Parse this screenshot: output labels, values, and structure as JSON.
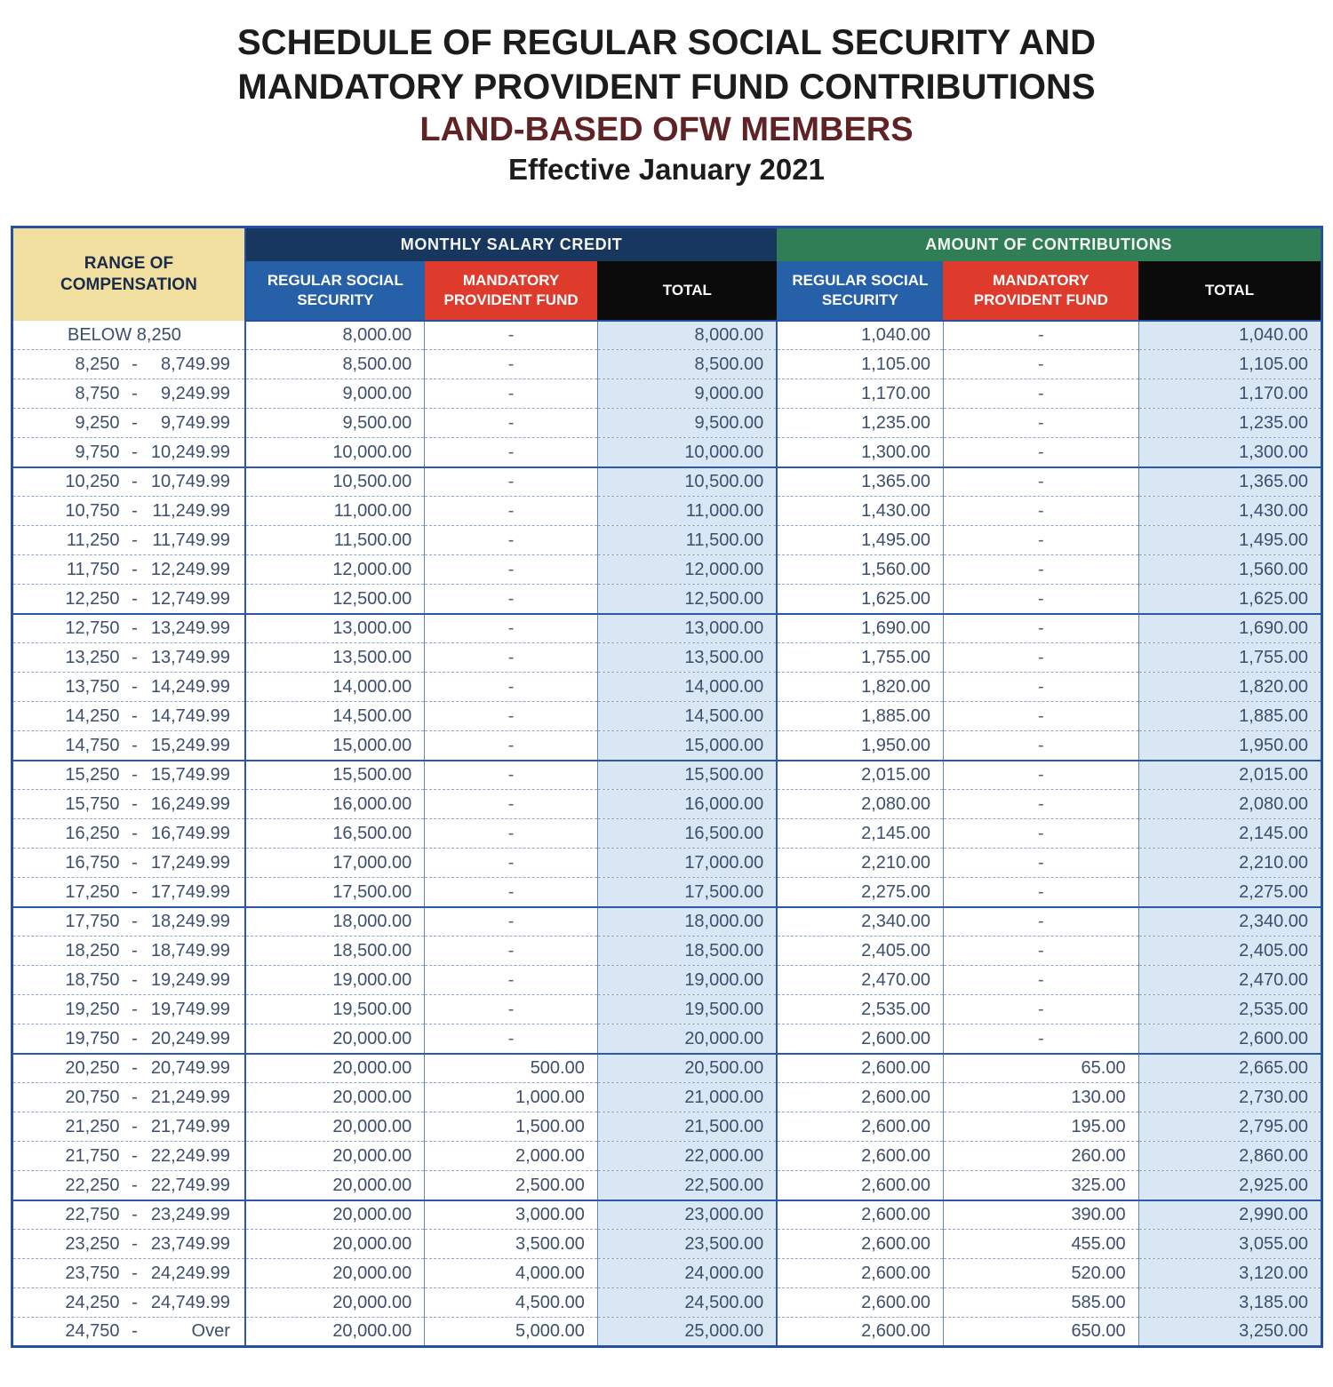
{
  "title": {
    "line1": "SCHEDULE OF REGULAR SOCIAL SECURITY AND",
    "line2": "MANDATORY PROVIDENT FUND CONTRIBUTIONS",
    "line3": "LAND-BASED OFW MEMBERS",
    "line4": "Effective January 2021"
  },
  "colors": {
    "range_header_bg": "#f1dfa0",
    "monthly_salary_credit_bg": "#17375e",
    "amount_of_contributions_bg": "#2f7e55",
    "regular_social_security_bg": "#2660a8",
    "mandatory_provident_fund_bg": "#df3b2c",
    "total_bg": "#0b0b0b",
    "total_column_fill": "#d9e6f4",
    "grid_blue": "#2d57a8",
    "ink": "#3d4f6e"
  },
  "table": {
    "col1_header": "RANGE OF COMPENSATION",
    "range_separator": "-",
    "group_headers": [
      {
        "label": "MONTHLY SALARY CREDIT",
        "color": "#17375e"
      },
      {
        "label": "AMOUNT OF CONTRIBUTIONS",
        "color": "#2f7e55"
      }
    ],
    "sub_headers": [
      {
        "label": "REGULAR SOCIAL SECURITY",
        "color": "#2660a8"
      },
      {
        "label": "MANDATORY PROVIDENT FUND",
        "color": "#df3b2c"
      },
      {
        "label": "TOTAL",
        "color": "#0b0b0b"
      }
    ],
    "rows": [
      {
        "single": "BELOW 8,250",
        "msc_rss": "8,000.00",
        "msc_mpf": "-",
        "msc_total": "8,000.00",
        "con_rss": "1,040.00",
        "con_mpf": "-",
        "con_total": "1,040.00"
      },
      {
        "low": "8,250",
        "high": "8,749.99",
        "msc_rss": "8,500.00",
        "msc_mpf": "-",
        "msc_total": "8,500.00",
        "con_rss": "1,105.00",
        "con_mpf": "-",
        "con_total": "1,105.00"
      },
      {
        "low": "8,750",
        "high": "9,249.99",
        "msc_rss": "9,000.00",
        "msc_mpf": "-",
        "msc_total": "9,000.00",
        "con_rss": "1,170.00",
        "con_mpf": "-",
        "con_total": "1,170.00"
      },
      {
        "low": "9,250",
        "high": "9,749.99",
        "msc_rss": "9,500.00",
        "msc_mpf": "-",
        "msc_total": "9,500.00",
        "con_rss": "1,235.00",
        "con_mpf": "-",
        "con_total": "1,235.00"
      },
      {
        "low": "9,750",
        "high": "10,249.99",
        "msc_rss": "10,000.00",
        "msc_mpf": "-",
        "msc_total": "10,000.00",
        "con_rss": "1,300.00",
        "con_mpf": "-",
        "con_total": "1,300.00"
      },
      {
        "low": "10,250",
        "high": "10,749.99",
        "msc_rss": "10,500.00",
        "msc_mpf": "-",
        "msc_total": "10,500.00",
        "con_rss": "1,365.00",
        "con_mpf": "-",
        "con_total": "1,365.00"
      },
      {
        "low": "10,750",
        "high": "11,249.99",
        "msc_rss": "11,000.00",
        "msc_mpf": "-",
        "msc_total": "11,000.00",
        "con_rss": "1,430.00",
        "con_mpf": "-",
        "con_total": "1,430.00"
      },
      {
        "low": "11,250",
        "high": "11,749.99",
        "msc_rss": "11,500.00",
        "msc_mpf": "-",
        "msc_total": "11,500.00",
        "con_rss": "1,495.00",
        "con_mpf": "-",
        "con_total": "1,495.00"
      },
      {
        "low": "11,750",
        "high": "12,249.99",
        "msc_rss": "12,000.00",
        "msc_mpf": "-",
        "msc_total": "12,000.00",
        "con_rss": "1,560.00",
        "con_mpf": "-",
        "con_total": "1,560.00"
      },
      {
        "low": "12,250",
        "high": "12,749.99",
        "msc_rss": "12,500.00",
        "msc_mpf": "-",
        "msc_total": "12,500.00",
        "con_rss": "1,625.00",
        "con_mpf": "-",
        "con_total": "1,625.00"
      },
      {
        "low": "12,750",
        "high": "13,249.99",
        "msc_rss": "13,000.00",
        "msc_mpf": "-",
        "msc_total": "13,000.00",
        "con_rss": "1,690.00",
        "con_mpf": "-",
        "con_total": "1,690.00"
      },
      {
        "low": "13,250",
        "high": "13,749.99",
        "msc_rss": "13,500.00",
        "msc_mpf": "-",
        "msc_total": "13,500.00",
        "con_rss": "1,755.00",
        "con_mpf": "-",
        "con_total": "1,755.00"
      },
      {
        "low": "13,750",
        "high": "14,249.99",
        "msc_rss": "14,000.00",
        "msc_mpf": "-",
        "msc_total": "14,000.00",
        "con_rss": "1,820.00",
        "con_mpf": "-",
        "con_total": "1,820.00"
      },
      {
        "low": "14,250",
        "high": "14,749.99",
        "msc_rss": "14,500.00",
        "msc_mpf": "-",
        "msc_total": "14,500.00",
        "con_rss": "1,885.00",
        "con_mpf": "-",
        "con_total": "1,885.00"
      },
      {
        "low": "14,750",
        "high": "15,249.99",
        "msc_rss": "15,000.00",
        "msc_mpf": "-",
        "msc_total": "15,000.00",
        "con_rss": "1,950.00",
        "con_mpf": "-",
        "con_total": "1,950.00"
      },
      {
        "low": "15,250",
        "high": "15,749.99",
        "msc_rss": "15,500.00",
        "msc_mpf": "-",
        "msc_total": "15,500.00",
        "con_rss": "2,015.00",
        "con_mpf": "-",
        "con_total": "2,015.00"
      },
      {
        "low": "15,750",
        "high": "16,249.99",
        "msc_rss": "16,000.00",
        "msc_mpf": "-",
        "msc_total": "16,000.00",
        "con_rss": "2,080.00",
        "con_mpf": "-",
        "con_total": "2,080.00"
      },
      {
        "low": "16,250",
        "high": "16,749.99",
        "msc_rss": "16,500.00",
        "msc_mpf": "-",
        "msc_total": "16,500.00",
        "con_rss": "2,145.00",
        "con_mpf": "-",
        "con_total": "2,145.00"
      },
      {
        "low": "16,750",
        "high": "17,249.99",
        "msc_rss": "17,000.00",
        "msc_mpf": "-",
        "msc_total": "17,000.00",
        "con_rss": "2,210.00",
        "con_mpf": "-",
        "con_total": "2,210.00"
      },
      {
        "low": "17,250",
        "high": "17,749.99",
        "msc_rss": "17,500.00",
        "msc_mpf": "-",
        "msc_total": "17,500.00",
        "con_rss": "2,275.00",
        "con_mpf": "-",
        "con_total": "2,275.00"
      },
      {
        "low": "17,750",
        "high": "18,249.99",
        "msc_rss": "18,000.00",
        "msc_mpf": "-",
        "msc_total": "18,000.00",
        "con_rss": "2,340.00",
        "con_mpf": "-",
        "con_total": "2,340.00"
      },
      {
        "low": "18,250",
        "high": "18,749.99",
        "msc_rss": "18,500.00",
        "msc_mpf": "-",
        "msc_total": "18,500.00",
        "con_rss": "2,405.00",
        "con_mpf": "-",
        "con_total": "2,405.00"
      },
      {
        "low": "18,750",
        "high": "19,249.99",
        "msc_rss": "19,000.00",
        "msc_mpf": "-",
        "msc_total": "19,000.00",
        "con_rss": "2,470.00",
        "con_mpf": "-",
        "con_total": "2,470.00"
      },
      {
        "low": "19,250",
        "high": "19,749.99",
        "msc_rss": "19,500.00",
        "msc_mpf": "-",
        "msc_total": "19,500.00",
        "con_rss": "2,535.00",
        "con_mpf": "-",
        "con_total": "2,535.00"
      },
      {
        "low": "19,750",
        "high": "20,249.99",
        "msc_rss": "20,000.00",
        "msc_mpf": "-",
        "msc_total": "20,000.00",
        "con_rss": "2,600.00",
        "con_mpf": "-",
        "con_total": "2,600.00"
      },
      {
        "low": "20,250",
        "high": "20,749.99",
        "msc_rss": "20,000.00",
        "msc_mpf": "500.00",
        "msc_total": "20,500.00",
        "con_rss": "2,600.00",
        "con_mpf": "65.00",
        "con_total": "2,665.00"
      },
      {
        "low": "20,750",
        "high": "21,249.99",
        "msc_rss": "20,000.00",
        "msc_mpf": "1,000.00",
        "msc_total": "21,000.00",
        "con_rss": "2,600.00",
        "con_mpf": "130.00",
        "con_total": "2,730.00"
      },
      {
        "low": "21,250",
        "high": "21,749.99",
        "msc_rss": "20,000.00",
        "msc_mpf": "1,500.00",
        "msc_total": "21,500.00",
        "con_rss": "2,600.00",
        "con_mpf": "195.00",
        "con_total": "2,795.00"
      },
      {
        "low": "21,750",
        "high": "22,249.99",
        "msc_rss": "20,000.00",
        "msc_mpf": "2,000.00",
        "msc_total": "22,000.00",
        "con_rss": "2,600.00",
        "con_mpf": "260.00",
        "con_total": "2,860.00"
      },
      {
        "low": "22,250",
        "high": "22,749.99",
        "msc_rss": "20,000.00",
        "msc_mpf": "2,500.00",
        "msc_total": "22,500.00",
        "con_rss": "2,600.00",
        "con_mpf": "325.00",
        "con_total": "2,925.00"
      },
      {
        "low": "22,750",
        "high": "23,249.99",
        "msc_rss": "20,000.00",
        "msc_mpf": "3,000.00",
        "msc_total": "23,000.00",
        "con_rss": "2,600.00",
        "con_mpf": "390.00",
        "con_total": "2,990.00"
      },
      {
        "low": "23,250",
        "high": "23,749.99",
        "msc_rss": "20,000.00",
        "msc_mpf": "3,500.00",
        "msc_total": "23,500.00",
        "con_rss": "2,600.00",
        "con_mpf": "455.00",
        "con_total": "3,055.00"
      },
      {
        "low": "23,750",
        "high": "24,249.99",
        "msc_rss": "20,000.00",
        "msc_mpf": "4,000.00",
        "msc_total": "24,000.00",
        "con_rss": "2,600.00",
        "con_mpf": "520.00",
        "con_total": "3,120.00"
      },
      {
        "low": "24,250",
        "high": "24,749.99",
        "msc_rss": "20,000.00",
        "msc_mpf": "4,500.00",
        "msc_total": "24,500.00",
        "con_rss": "2,600.00",
        "con_mpf": "585.00",
        "con_total": "3,185.00"
      },
      {
        "low": "24,750",
        "high": "Over",
        "msc_rss": "20,000.00",
        "msc_mpf": "5,000.00",
        "msc_total": "25,000.00",
        "con_rss": "2,600.00",
        "con_mpf": "650.00",
        "con_total": "3,250.00"
      }
    ]
  }
}
